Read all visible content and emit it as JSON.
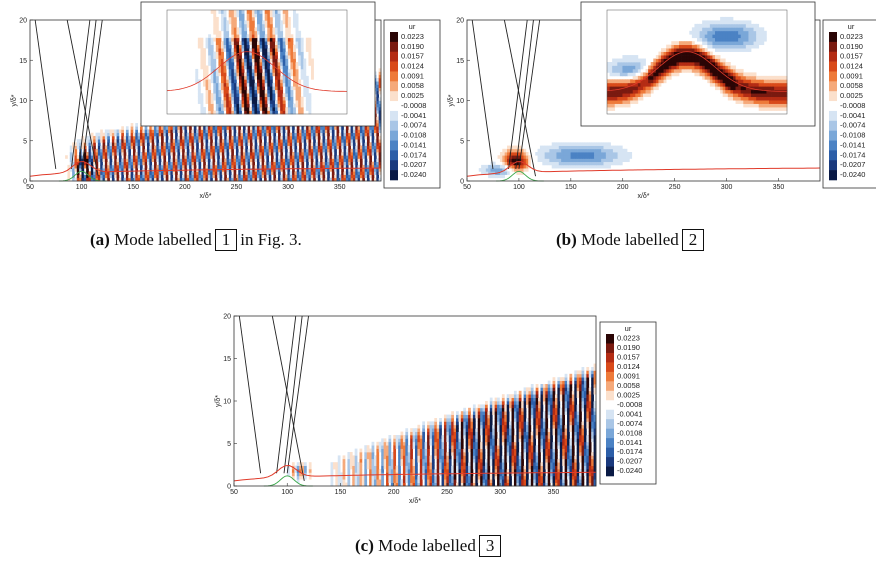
{
  "figure": {
    "colorbar": {
      "title": "ur",
      "ticks": [
        "0.0223",
        "0.0190",
        "0.0157",
        "0.0124",
        "0.0091",
        "0.0058",
        "0.0025",
        "-0.0008",
        "-0.0041",
        "-0.0074",
        "-0.0108",
        "-0.0141",
        "-0.0174",
        "-0.0207",
        "-0.0240"
      ],
      "colors": [
        "#2a0505",
        "#7a1a10",
        "#b42c14",
        "#d94a1a",
        "#ee7a3a",
        "#f5a97a",
        "#fbe0cc",
        "#ffffff",
        "#d6e4f3",
        "#a9c6e6",
        "#7aa7d8",
        "#4b82c4",
        "#2c5ea8",
        "#1a3a7e",
        "#0a1a45"
      ]
    },
    "axes": {
      "xlabel": "x/δ*",
      "ylabel": "y/δ*",
      "xticks": [
        "50",
        "100",
        "150",
        "200",
        "250",
        "300",
        "350"
      ],
      "yticks": [
        "0",
        "5",
        "10",
        "15",
        "20"
      ]
    },
    "captions": [
      {
        "tag": "(a)",
        "text_before": "Mode labelled",
        "box": "1",
        "text_after": "in Fig. 3."
      },
      {
        "tag": "(b)",
        "text_before": "Mode labelled",
        "box": "2",
        "text_after": ""
      },
      {
        "tag": "(c)",
        "text_before": "Mode labelled",
        "box": "3",
        "text_after": ""
      }
    ]
  },
  "chart_data": [
    {
      "type": "heatmap",
      "panel": "a",
      "title": "",
      "xlabel": "x/δ*",
      "ylabel": "y/δ*",
      "xlim": [
        50,
        390
      ],
      "ylim": [
        0,
        20
      ],
      "colorbar_label": "ur",
      "colorbar_range": [
        -0.024,
        0.0223
      ],
      "has_inset": true,
      "structure": "oblique wave train extending over the full domain"
    },
    {
      "type": "heatmap",
      "panel": "b",
      "title": "",
      "xlabel": "x/δ*",
      "ylabel": "y/δ*",
      "xlim": [
        50,
        390
      ],
      "ylim": [
        0,
        20
      ],
      "colorbar_label": "ur",
      "colorbar_range": [
        -0.024,
        0.0223
      ],
      "has_inset": true,
      "structure": "localized structure near the shock-impingement point"
    },
    {
      "type": "heatmap",
      "panel": "c",
      "title": "",
      "xlabel": "x/δ*",
      "ylabel": "y/δ*",
      "xlim": [
        50,
        390
      ],
      "ylim": [
        0,
        20
      ],
      "colorbar_label": "ur",
      "colorbar_range": [
        -0.024,
        0.0223
      ],
      "has_inset": false,
      "structure": "downstream-growing wave packet"
    }
  ]
}
